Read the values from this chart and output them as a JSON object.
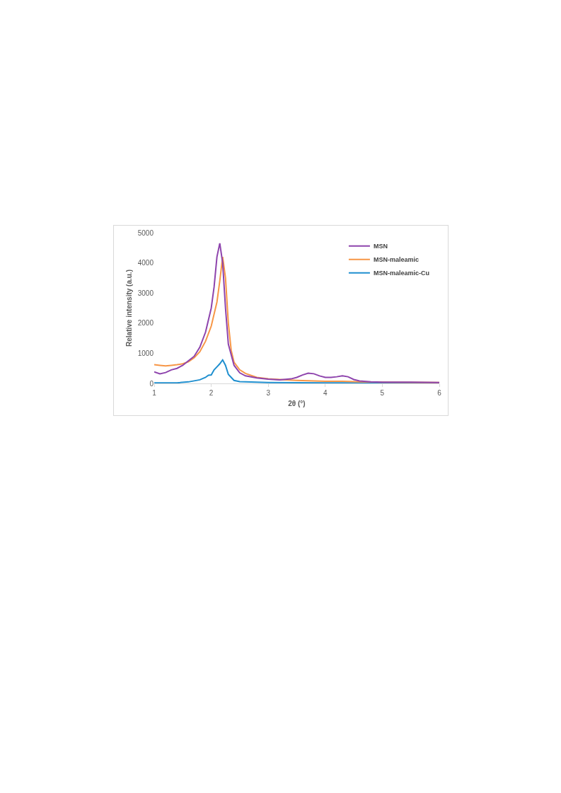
{
  "chart_data": {
    "type": "line",
    "xlabel": "2θ (°)",
    "ylabel": "Relative intensity (a.u.)",
    "xlim": [
      1,
      6
    ],
    "xticks": [
      1,
      2,
      3,
      4,
      5,
      6
    ],
    "ylim": [
      0,
      5000
    ],
    "yticks": [
      0,
      1000,
      2000,
      3000,
      4000,
      5000
    ],
    "grid": false,
    "legend": "top right",
    "marker": "none",
    "line_style": "solid",
    "series": [
      {
        "name": "MSN",
        "color": "#8e44ad",
        "x": [
          1.0,
          1.1,
          1.2,
          1.3,
          1.4,
          1.5,
          1.6,
          1.7,
          1.8,
          1.9,
          2.0,
          2.05,
          2.1,
          2.15,
          2.2,
          2.25,
          2.3,
          2.4,
          2.5,
          2.6,
          2.8,
          3.0,
          3.2,
          3.4,
          3.5,
          3.6,
          3.7,
          3.8,
          3.9,
          4.0,
          4.1,
          4.2,
          4.3,
          4.4,
          4.5,
          4.6,
          4.8,
          5.0,
          5.5,
          6.0
        ],
        "values": [
          380,
          320,
          360,
          450,
          500,
          600,
          750,
          900,
          1200,
          1700,
          2500,
          3200,
          4200,
          4650,
          4000,
          2500,
          1300,
          600,
          350,
          250,
          180,
          140,
          120,
          150,
          200,
          280,
          340,
          320,
          250,
          200,
          200,
          220,
          250,
          220,
          130,
          80,
          50,
          40,
          40,
          30
        ]
      },
      {
        "name": "MSN-maleamic",
        "color": "#f79646",
        "x": [
          1.0,
          1.1,
          1.2,
          1.3,
          1.4,
          1.5,
          1.6,
          1.7,
          1.8,
          1.9,
          2.0,
          2.1,
          2.15,
          2.2,
          2.25,
          2.3,
          2.35,
          2.4,
          2.5,
          2.6,
          2.8,
          3.0,
          3.2,
          3.5,
          3.8,
          4.0,
          4.3,
          4.6,
          5.0,
          6.0
        ],
        "values": [
          620,
          600,
          580,
          600,
          620,
          650,
          720,
          850,
          1050,
          1400,
          1900,
          2700,
          3400,
          4200,
          3500,
          2000,
          1100,
          700,
          450,
          330,
          200,
          150,
          130,
          100,
          80,
          70,
          70,
          50,
          40,
          30
        ]
      },
      {
        "name": "MSN-maleamic-Cu",
        "color": "#1f8fcf",
        "x": [
          1.0,
          1.4,
          1.6,
          1.8,
          1.9,
          1.95,
          2.0,
          2.05,
          2.1,
          2.15,
          2.2,
          2.25,
          2.3,
          2.4,
          2.5,
          2.8,
          3.0,
          4.0,
          5.0,
          6.0
        ],
        "values": [
          20,
          20,
          50,
          120,
          200,
          270,
          280,
          450,
          550,
          650,
          780,
          600,
          300,
          100,
          60,
          40,
          30,
          20,
          20,
          20
        ]
      }
    ]
  }
}
